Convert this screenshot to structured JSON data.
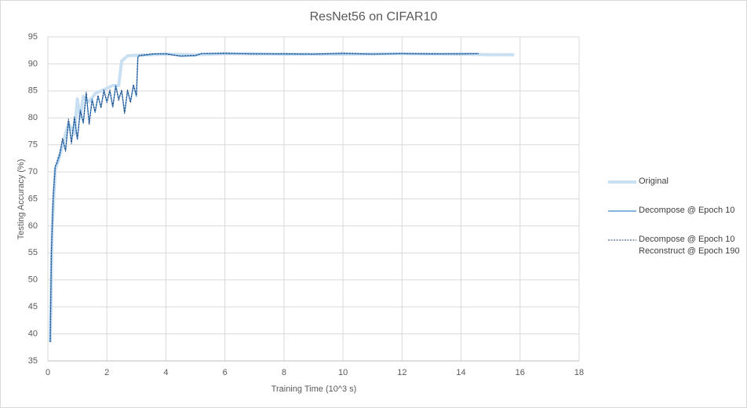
{
  "chart_data": {
    "type": "line",
    "title": "ResNet56 on CIFAR10",
    "x_label": "Training Time (10^3 s)",
    "y_label": "Testing Accuracy (%)",
    "xlim": [
      0,
      18
    ],
    "xticks": [
      0,
      2,
      4,
      6,
      8,
      10,
      12,
      14,
      16,
      18
    ],
    "ylim": [
      35,
      95
    ],
    "yticks": [
      35,
      40,
      45,
      50,
      55,
      60,
      65,
      70,
      75,
      80,
      85,
      90,
      95
    ],
    "grid": true,
    "legend": "right",
    "series": [
      {
        "name": "Original",
        "color": "#c9dff2",
        "width": 4,
        "dashed": false,
        "x": [
          0.08,
          0.15,
          0.25,
          0.35,
          0.5,
          0.7,
          0.9,
          1.0,
          1.1,
          1.2,
          1.4,
          1.6,
          1.8,
          2.0,
          2.2,
          2.4,
          2.5,
          2.7,
          3,
          4,
          5,
          6,
          8,
          10,
          12,
          14,
          15,
          15.8
        ],
        "values": [
          38.5,
          60,
          70.5,
          72,
          75,
          79,
          77,
          83.5,
          80,
          84,
          83,
          84.5,
          85,
          85.5,
          86,
          86,
          90.5,
          91.5,
          91.6,
          91.8,
          91.7,
          91.9,
          91.8,
          91.8,
          91.9,
          91.8,
          91.7,
          91.7
        ]
      },
      {
        "name": "Decompose @ Epoch 10",
        "color": "#5b9bd5",
        "width": 1.5,
        "dashed": false,
        "x": [
          0.08,
          0.12,
          0.18,
          0.25,
          0.3,
          0.4,
          0.5,
          0.6,
          0.7,
          0.8,
          0.9,
          1.0,
          1.1,
          1.2,
          1.3,
          1.4,
          1.5,
          1.6,
          1.7,
          1.8,
          1.9,
          2.0,
          2.1,
          2.2,
          2.3,
          2.4,
          2.5,
          2.6,
          2.7,
          2.8,
          2.9,
          3.0,
          3.05,
          3.1,
          3.3,
          3.6,
          4.0,
          4.5,
          5.0,
          5.2,
          6,
          7,
          8,
          9,
          10,
          11,
          12,
          13,
          14,
          14.6
        ],
        "values": [
          38.5,
          55,
          65,
          71,
          71.5,
          73,
          76,
          74,
          79.5,
          75.5,
          80,
          76,
          81.5,
          79,
          84.5,
          79,
          83.5,
          81,
          84,
          82,
          85,
          83,
          85,
          82,
          86,
          83.5,
          85,
          81,
          85,
          83,
          86,
          84,
          91.3,
          91.5,
          91.6,
          91.8,
          91.9,
          91.4,
          91.5,
          91.9,
          91.9,
          91.9,
          91.8,
          91.8,
          91.9,
          91.8,
          91.9,
          91.8,
          91.9,
          91.9
        ]
      },
      {
        "name": "Decompose @ Epoch 10\nReconstruct @ Epoch 190",
        "color": "#1f3f6e",
        "width": 1,
        "dashed": true,
        "x": [
          0.08,
          0.12,
          0.18,
          0.25,
          0.3,
          0.4,
          0.5,
          0.6,
          0.7,
          0.8,
          0.9,
          1.0,
          1.1,
          1.2,
          1.3,
          1.4,
          1.5,
          1.6,
          1.7,
          1.8,
          1.9,
          2.0,
          2.1,
          2.2,
          2.3,
          2.4,
          2.5,
          2.6,
          2.7,
          2.8,
          2.9,
          3.0,
          3.05,
          3.1,
          3.3,
          3.6,
          4.0,
          4.5,
          5.0,
          5.2,
          6,
          7,
          8,
          9,
          10,
          11,
          12,
          13,
          14,
          14.6
        ],
        "values": [
          38.5,
          55.5,
          65.5,
          71,
          71.8,
          73.5,
          76.2,
          73.8,
          79.8,
          75.2,
          80.2,
          76.2,
          81.2,
          79.2,
          84.8,
          78.8,
          83.2,
          81.2,
          84.2,
          81.8,
          85.2,
          82.8,
          85.2,
          82.2,
          85.8,
          83.2,
          85.2,
          80.8,
          85.2,
          82.8,
          86.2,
          84.2,
          91.2,
          91.6,
          91.7,
          91.9,
          91.8,
          91.5,
          91.6,
          91.9,
          92.0,
          91.8,
          91.9,
          91.8,
          92.0,
          91.8,
          91.9,
          91.9,
          91.8,
          91.9
        ]
      }
    ]
  }
}
